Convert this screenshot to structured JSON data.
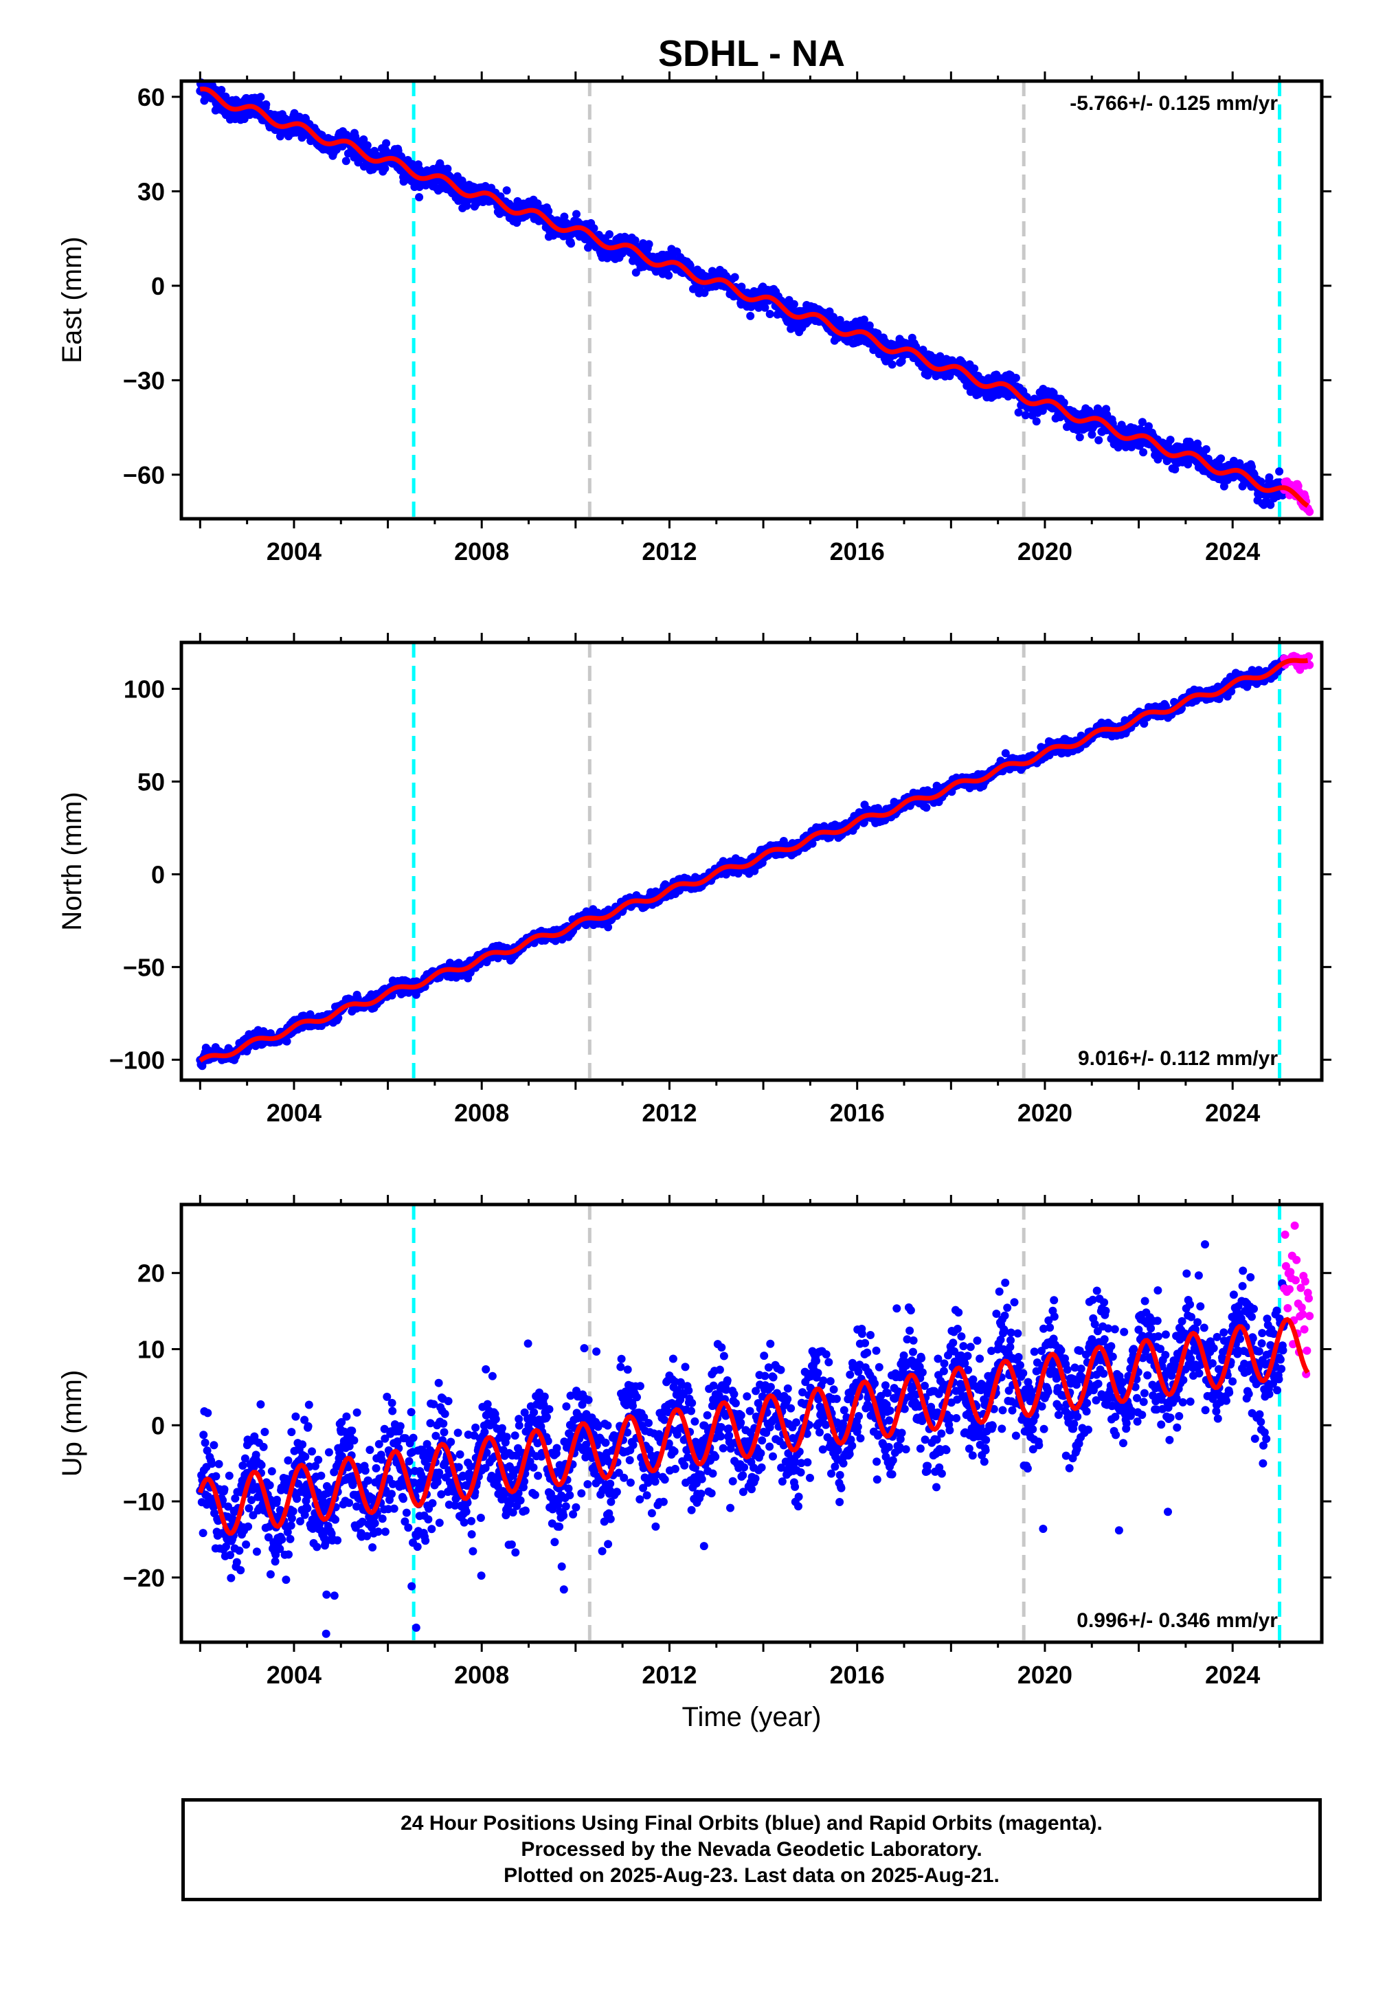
{
  "title": "SDHL - NA",
  "xlabel": "Time (year)",
  "colors": {
    "final_orbits": "#0000ff",
    "rapid_orbits": "#ff00ff",
    "model": "#ff0000",
    "antenna_change": "#00ffff",
    "equipment_change": "#c8c8c8"
  },
  "chart_data": [
    {
      "type": "scatter",
      "ylabel": "East (mm)",
      "rate": "-5.766+/- 0.125 mm/yr",
      "rate_position": "top-right",
      "xlim": [
        2001.6,
        2025.9
      ],
      "ylim": [
        -74,
        65
      ],
      "xticks": [
        2004,
        2008,
        2012,
        2016,
        2020,
        2024
      ],
      "xtick_labels": [
        "2004",
        "2008",
        "2012",
        "2016",
        "2020",
        "2024"
      ],
      "yticks": [
        -60,
        -30,
        0,
        30,
        60
      ],
      "ytick_labels": [
        "−60",
        "−30",
        "0",
        "30",
        "60"
      ],
      "trend": {
        "start": [
          2002.0,
          61.5
        ],
        "end": [
          2025.6,
          -68.4
        ]
      },
      "seasonal_amplitude": 1.6,
      "scatter_noise": 1.8,
      "step_at_equipment": [
        0,
        0,
        0
      ],
      "series": [
        {
          "name": "Final Orbits (blue)",
          "x_range": [
            2002.0,
            2025.1
          ]
        },
        {
          "name": "Rapid Orbits (magenta)",
          "x_range": [
            2025.1,
            2025.64
          ]
        },
        {
          "name": "model",
          "x_range": [
            2002.0,
            2025.6
          ]
        }
      ],
      "antenna_changes": [
        2006.55,
        2025.0
      ],
      "equipment_changes": [
        2010.3,
        2019.55
      ]
    },
    {
      "type": "scatter",
      "ylabel": "North (mm)",
      "rate": "9.016+/- 0.112 mm/yr",
      "rate_position": "bottom-right",
      "xlim": [
        2001.6,
        2025.9
      ],
      "ylim": [
        -111,
        125
      ],
      "xticks": [
        2004,
        2008,
        2012,
        2016,
        2020,
        2024
      ],
      "xtick_labels": [
        "2004",
        "2008",
        "2012",
        "2016",
        "2020",
        "2024"
      ],
      "yticks": [
        -100,
        -50,
        0,
        50,
        100
      ],
      "ytick_labels": [
        "−100",
        "−50",
        "0",
        "50",
        "100"
      ],
      "trend": {
        "start": [
          2002.0,
          -101.5
        ],
        "end": [
          2025.6,
          117.0
        ]
      },
      "seasonal_amplitude": 1.8,
      "scatter_noise": 1.7,
      "step_at_equipment": [
        0,
        0,
        0
      ],
      "series": [
        {
          "name": "Final Orbits (blue)",
          "x_range": [
            2002.0,
            2025.1
          ]
        },
        {
          "name": "Rapid Orbits (magenta)",
          "x_range": [
            2025.1,
            2025.64
          ]
        },
        {
          "name": "model",
          "x_range": [
            2002.0,
            2025.6
          ]
        }
      ],
      "antenna_changes": [
        2006.55,
        2025.0
      ],
      "equipment_changes": [
        2010.3,
        2019.55
      ]
    },
    {
      "type": "scatter",
      "ylabel": "Up (mm)",
      "rate": "0.996+/- 0.346 mm/yr",
      "rate_position": "bottom-right",
      "xlim": [
        2001.6,
        2025.9
      ],
      "ylim": [
        -28.5,
        29
      ],
      "xticks": [
        2004,
        2008,
        2012,
        2016,
        2020,
        2024
      ],
      "xtick_labels": [
        "2004",
        "2008",
        "2012",
        "2016",
        "2020",
        "2024"
      ],
      "yticks": [
        -20,
        -10,
        0,
        10,
        20
      ],
      "ytick_labels": [
        "−20",
        "−10",
        "0",
        "10",
        "20"
      ],
      "trend": {
        "start": [
          2002.0,
          -11.0
        ],
        "end": [
          2025.6,
          10.5
        ]
      },
      "seasonal_amplitude": 3.8,
      "scatter_noise": 3.6,
      "step_at_equipment": [
        0,
        0,
        0
      ],
      "series": [
        {
          "name": "Final Orbits (blue)",
          "x_range": [
            2002.0,
            2025.1
          ]
        },
        {
          "name": "Rapid Orbits (magenta)",
          "x_range": [
            2025.1,
            2025.64
          ]
        },
        {
          "name": "model",
          "x_range": [
            2002.0,
            2025.6
          ]
        }
      ],
      "antenna_changes": [
        2006.55,
        2025.0
      ],
      "equipment_changes": [
        2010.3,
        2019.55
      ]
    }
  ],
  "caption": {
    "line1": "24 Hour Positions Using Final Orbits (blue) and Rapid Orbits (magenta).",
    "line2": "Processed by the Nevada Geodetic Laboratory.",
    "line3": "Plotted on 2025-Aug-23. Last data on 2025-Aug-21."
  }
}
